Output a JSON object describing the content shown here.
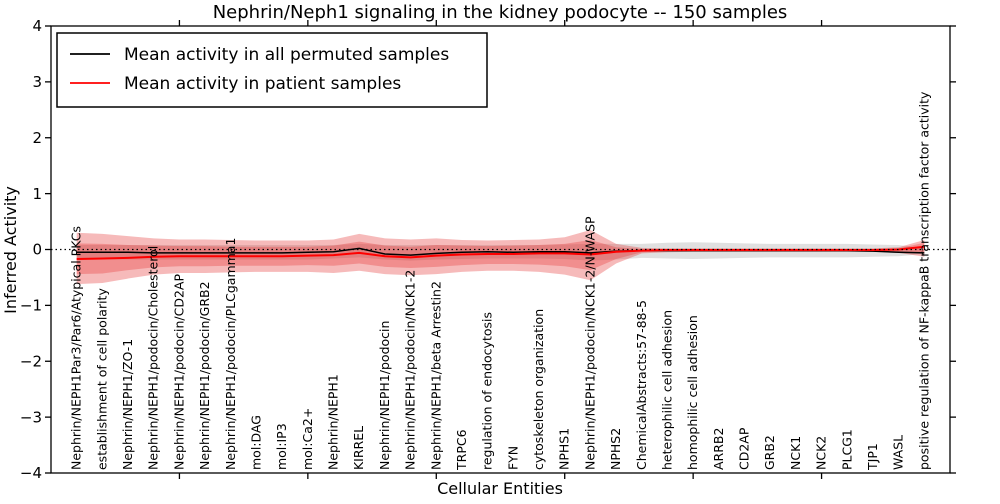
{
  "figure": {
    "title": "Nephrin/Neph1 signaling in the kidney podocyte -- 150 samples",
    "xlabel": "Cellular Entities",
    "ylabel": "Inferred Activity"
  },
  "legend": {
    "entries": [
      {
        "label": "Mean activity in all permuted samples",
        "color": "#000000"
      },
      {
        "label": "Mean activity in patient samples",
        "color": "#ff0000"
      }
    ]
  },
  "chart_data": {
    "type": "line",
    "title": "Nephrin/Neph1 signaling in the kidney podocyte -- 150 samples",
    "xlabel": "Cellular Entities",
    "ylabel": "Inferred Activity",
    "x_axis": {
      "categories": [
        "Nephrin/NEPH1Par3/Par6/Atypical PKCs",
        "establishment of cell polarity",
        "Nephrin/NEPH1/ZO-1",
        "Nephrin/NEPH1/podocin/Cholesterol",
        "Nephrin/NEPH1/podocin/CD2AP",
        "Nephrin/NEPH1/podocin/GRB2",
        "Nephrin/NEPH1/podocin/PLCgamma1",
        "mol:DAG",
        "mol:IP3",
        "mol:Ca2+",
        "Nephrin/NEPH1",
        "KIRREL",
        "Nephrin/NEPH1/podocin",
        "Nephrin/NEPH1/podocin/NCK1-2",
        "Nephrin/NEPH1/beta Arrestin2",
        "TRPC6",
        "regulation of endocytosis",
        "FYN",
        "cytoskeleton organization",
        "NPHS1",
        "Nephrin/NEPH1/podocin/NCK1-2/N-WASP",
        "NPHS2",
        "ChemicalAbstracts:57-88-5",
        "heterophilic cell adhesion",
        "homophilic cell adhesion",
        "ARRB2",
        "CD2AP",
        "GRB2",
        "NCK1",
        "NCK2",
        "PLCG1",
        "TJP1",
        "WASL",
        "positive regulation of NF-kappaB transcription factor activity"
      ],
      "major_tick_positions": [
        5,
        10,
        15,
        20,
        25,
        30
      ]
    },
    "y_axis": {
      "ticks": [
        4,
        3,
        2,
        1,
        0,
        -1,
        -2,
        -3,
        -4
      ],
      "range": [
        -4,
        4
      ]
    },
    "zero_line": 0,
    "series": [
      {
        "name": "Mean activity in all permuted samples",
        "color": "#000000",
        "width": 1.5,
        "values": [
          -0.05,
          -0.05,
          -0.05,
          -0.06,
          -0.06,
          -0.06,
          -0.06,
          -0.06,
          -0.06,
          -0.05,
          -0.04,
          0.02,
          -0.08,
          -0.1,
          -0.07,
          -0.05,
          -0.04,
          -0.05,
          -0.04,
          -0.04,
          -0.06,
          -0.03,
          -0.02,
          -0.02,
          -0.02,
          -0.02,
          -0.02,
          -0.02,
          -0.02,
          -0.02,
          -0.02,
          -0.03,
          -0.05,
          -0.06
        ]
      },
      {
        "name": "Mean activity in patient samples",
        "color": "#ff0000",
        "width": 2,
        "values": [
          -0.17,
          -0.16,
          -0.15,
          -0.13,
          -0.12,
          -0.12,
          -0.12,
          -0.12,
          -0.12,
          -0.11,
          -0.1,
          -0.06,
          -0.12,
          -0.14,
          -0.11,
          -0.09,
          -0.08,
          -0.08,
          -0.07,
          -0.07,
          -0.09,
          -0.04,
          -0.02,
          -0.01,
          -0.01,
          -0.01,
          -0.01,
          -0.01,
          -0.01,
          -0.01,
          -0.01,
          -0.01,
          0.0,
          0.05
        ]
      }
    ],
    "bands": [
      {
        "name": "permuted-samples-spread",
        "color": "#999999",
        "opacity": 0.3,
        "upper": [
          0.08,
          0.08,
          0.08,
          0.08,
          0.08,
          0.08,
          0.08,
          0.08,
          0.08,
          0.08,
          0.08,
          0.1,
          0.08,
          0.08,
          0.08,
          0.08,
          0.08,
          0.08,
          0.08,
          0.09,
          0.1,
          0.1,
          0.1,
          0.12,
          0.13,
          0.12,
          0.11,
          0.1,
          0.1,
          0.1,
          0.1,
          0.09,
          0.08,
          0.02
        ],
        "lower": [
          -0.18,
          -0.18,
          -0.18,
          -0.18,
          -0.18,
          -0.18,
          -0.18,
          -0.18,
          -0.18,
          -0.18,
          -0.16,
          -0.14,
          -0.18,
          -0.2,
          -0.18,
          -0.17,
          -0.16,
          -0.16,
          -0.16,
          -0.17,
          -0.2,
          -0.18,
          -0.15,
          -0.16,
          -0.17,
          -0.16,
          -0.15,
          -0.14,
          -0.14,
          -0.14,
          -0.14,
          -0.13,
          -0.12,
          -0.08
        ]
      },
      {
        "name": "patient-samples-spread-outer",
        "color": "#e32828",
        "opacity": 0.32,
        "upper": [
          0.3,
          0.28,
          0.24,
          0.2,
          0.18,
          0.18,
          0.17,
          0.16,
          0.16,
          0.16,
          0.18,
          0.28,
          0.2,
          0.18,
          0.2,
          0.17,
          0.16,
          0.17,
          0.18,
          0.22,
          0.35,
          0.1,
          0.03,
          0.02,
          0.02,
          0.02,
          0.02,
          0.02,
          0.02,
          0.02,
          0.02,
          0.02,
          0.04,
          0.17
        ],
        "lower": [
          -0.62,
          -0.6,
          -0.52,
          -0.45,
          -0.42,
          -0.42,
          -0.41,
          -0.4,
          -0.4,
          -0.4,
          -0.42,
          -0.38,
          -0.44,
          -0.46,
          -0.44,
          -0.4,
          -0.38,
          -0.38,
          -0.4,
          -0.45,
          -0.55,
          -0.25,
          -0.07,
          -0.05,
          -0.04,
          -0.04,
          -0.04,
          -0.04,
          -0.04,
          -0.04,
          -0.04,
          -0.04,
          -0.06,
          -0.13
        ]
      },
      {
        "name": "patient-samples-spread-inner",
        "color": "#e32828",
        "opacity": 0.3,
        "upper": [
          0.11,
          0.1,
          0.08,
          0.07,
          0.06,
          0.06,
          0.05,
          0.05,
          0.05,
          0.05,
          0.07,
          0.14,
          0.07,
          0.05,
          0.08,
          0.07,
          0.06,
          0.07,
          0.08,
          0.1,
          0.17,
          0.04,
          0.01,
          0.01,
          0.01,
          0.01,
          0.01,
          0.01,
          0.01,
          0.01,
          0.01,
          0.01,
          0.02,
          0.12
        ],
        "lower": [
          -0.44,
          -0.43,
          -0.37,
          -0.32,
          -0.3,
          -0.3,
          -0.29,
          -0.29,
          -0.29,
          -0.28,
          -0.29,
          -0.25,
          -0.31,
          -0.33,
          -0.31,
          -0.28,
          -0.26,
          -0.26,
          -0.27,
          -0.3,
          -0.37,
          -0.17,
          -0.05,
          -0.03,
          -0.03,
          -0.03,
          -0.03,
          -0.03,
          -0.03,
          -0.03,
          -0.03,
          -0.03,
          -0.04,
          -0.06
        ]
      }
    ]
  }
}
